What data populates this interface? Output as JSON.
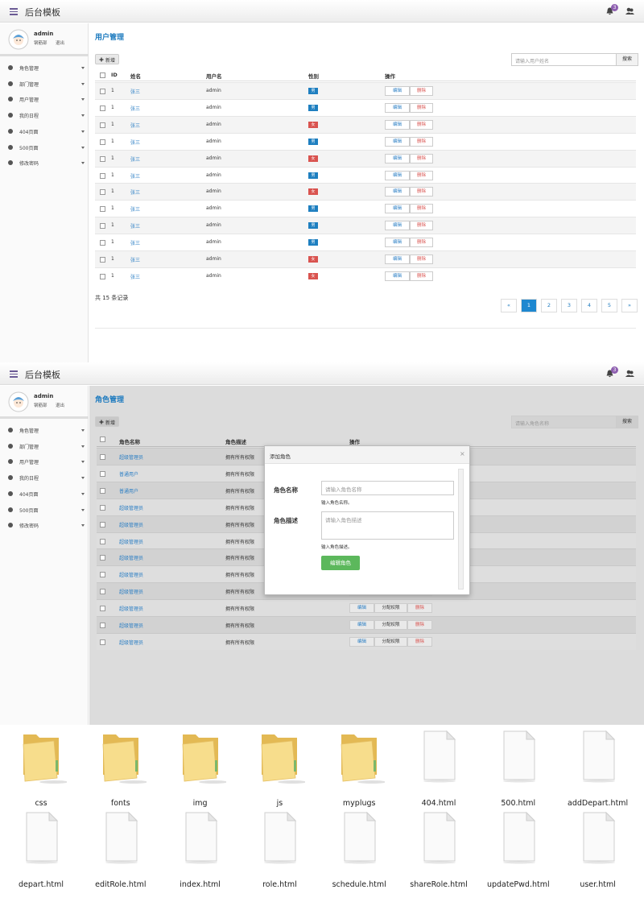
{
  "user_page": {
    "header": {
      "title": "后台模板",
      "badge": "3"
    },
    "profile": {
      "name": "admin",
      "dept": "钢筋部",
      "logout": "退出"
    },
    "menu": [
      "角色管理",
      "部门管理",
      "用户管理",
      "我的日程",
      "404页面",
      "500页面",
      "修改密码"
    ],
    "title": "用户管理",
    "add": "新增",
    "search": {
      "placeholder": "请输入用户姓名",
      "button": "搜索"
    },
    "columns": [
      "ID",
      "姓名",
      "用户名",
      "性别",
      "操作"
    ],
    "rows": [
      [
        1,
        "张三",
        "admin",
        "男"
      ],
      [
        1,
        "张三",
        "admin",
        "男"
      ],
      [
        1,
        "张三",
        "admin",
        "女"
      ],
      [
        1,
        "张三",
        "admin",
        "男"
      ],
      [
        1,
        "张三",
        "admin",
        "女"
      ],
      [
        1,
        "张三",
        "admin",
        "男"
      ],
      [
        1,
        "张三",
        "admin",
        "女"
      ],
      [
        1,
        "张三",
        "admin",
        "男"
      ],
      [
        1,
        "张三",
        "admin",
        "男"
      ],
      [
        1,
        "张三",
        "admin",
        "男"
      ],
      [
        1,
        "张三",
        "admin",
        "女"
      ],
      [
        1,
        "张三",
        "admin",
        "女"
      ]
    ],
    "actions": [
      "编辑",
      "删除"
    ],
    "total": "共 15 条记录",
    "pagination": [
      "«",
      "1",
      "2",
      "3",
      "4",
      "5",
      "»"
    ]
  },
  "role_page": {
    "header": {
      "title": "后台模板",
      "badge": "3"
    },
    "profile": {
      "name": "admin",
      "dept": "钢筋部",
      "logout": "退出"
    },
    "menu": [
      "角色管理",
      "部门管理",
      "用户管理",
      "我的日程",
      "404页面",
      "500页面",
      "修改密码"
    ],
    "title": "角色管理",
    "add": "新增",
    "search": {
      "placeholder": "请输入角色名称",
      "button": "搜索"
    },
    "columns": [
      "角色名称",
      "角色描述",
      "操作"
    ],
    "rows": [
      [
        "超级管理员",
        "拥有所有权限"
      ],
      [
        "普通用户",
        "拥有所有权限"
      ],
      [
        "普通用户",
        "拥有所有权限"
      ],
      [
        "超级管理员",
        "拥有所有权限"
      ],
      [
        "超级管理员",
        "拥有所有权限"
      ],
      [
        "超级管理员",
        "拥有所有权限"
      ],
      [
        "超级管理员",
        "拥有所有权限"
      ],
      [
        "超级管理员",
        "拥有所有权限"
      ],
      [
        "超级管理员",
        "拥有所有权限"
      ],
      [
        "超级管理员",
        "拥有所有权限"
      ],
      [
        "超级管理员",
        "拥有所有权限"
      ],
      [
        "超级管理员",
        "拥有所有权限"
      ]
    ],
    "actions": [
      "编辑",
      "分配权限",
      "删除"
    ],
    "modal": {
      "title": "添加角色",
      "close": "×",
      "fields": [
        {
          "label": "角色名称",
          "placeholder": "请输入角色名称",
          "help": "输入角色名称。"
        },
        {
          "label": "角色描述",
          "placeholder": "请输入角色描述",
          "help": "输入角色描述。"
        }
      ],
      "submit": "编辑角色"
    }
  },
  "files": [
    "css",
    "fonts",
    "img",
    "js",
    "myplugs",
    "404.html",
    "500.html",
    "addDepart.html",
    "depart.html",
    "editRole.html",
    "index.html",
    "role.html",
    "schedule.html",
    "shareRole.html",
    "updatePwd.html",
    "user.html"
  ]
}
